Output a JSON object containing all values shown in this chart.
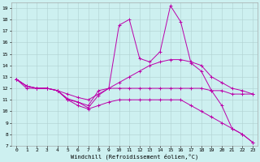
{
  "xlabel": "Windchill (Refroidissement éolien,°C)",
  "background_color": "#cdf0f0",
  "grid_color": "#b0d0d0",
  "line_color": "#bb00aa",
  "xlim": [
    -0.5,
    23.5
  ],
  "ylim": [
    7,
    19.5
  ],
  "xticks": [
    0,
    1,
    2,
    3,
    4,
    5,
    6,
    7,
    8,
    9,
    10,
    11,
    12,
    13,
    14,
    15,
    16,
    17,
    18,
    19,
    20,
    21,
    22,
    23
  ],
  "yticks": [
    7,
    8,
    9,
    10,
    11,
    12,
    13,
    14,
    15,
    16,
    17,
    18,
    19
  ],
  "lines": [
    {
      "x": [
        0,
        1,
        2,
        3,
        4,
        5,
        6,
        7,
        8,
        9,
        10,
        11,
        12,
        13,
        14,
        15,
        16,
        17,
        18,
        19,
        20,
        21,
        22,
        23
      ],
      "y": [
        12.8,
        12.2,
        12.0,
        12.0,
        11.8,
        11.1,
        10.8,
        10.3,
        11.4,
        12.0,
        17.5,
        18.0,
        14.6,
        14.3,
        15.2,
        19.2,
        17.8,
        14.2,
        13.5,
        11.8,
        10.5,
        8.5,
        8.0,
        7.3
      ]
    },
    {
      "x": [
        0,
        1,
        2,
        3,
        4,
        5,
        6,
        7,
        8,
        9,
        10,
        11,
        12,
        13,
        14,
        15,
        16,
        17,
        18,
        19,
        20,
        21,
        22,
        23
      ],
      "y": [
        12.8,
        12.2,
        12.0,
        12.0,
        11.8,
        11.5,
        11.2,
        11.0,
        11.5,
        12.0,
        12.5,
        13.0,
        13.5,
        14.0,
        14.3,
        14.5,
        14.5,
        14.3,
        14.0,
        13.0,
        12.5,
        12.0,
        11.8,
        11.5
      ]
    },
    {
      "x": [
        0,
        1,
        2,
        3,
        4,
        5,
        6,
        7,
        8,
        9,
        10,
        11,
        12,
        13,
        14,
        15,
        16,
        17,
        18,
        19,
        20,
        21,
        22,
        23
      ],
      "y": [
        12.8,
        12.2,
        12.0,
        12.0,
        11.8,
        11.0,
        10.8,
        10.5,
        11.8,
        12.0,
        12.0,
        12.0,
        12.0,
        12.0,
        12.0,
        12.0,
        12.0,
        12.0,
        12.0,
        11.8,
        11.8,
        11.5,
        11.5,
        11.5
      ]
    },
    {
      "x": [
        0,
        1,
        2,
        3,
        4,
        5,
        6,
        7,
        8,
        9,
        10,
        11,
        12,
        13,
        14,
        15,
        16,
        17,
        18,
        19,
        20,
        21,
        22,
        23
      ],
      "y": [
        12.8,
        12.0,
        12.0,
        12.0,
        11.8,
        11.0,
        10.5,
        10.2,
        10.5,
        10.8,
        11.0,
        11.0,
        11.0,
        11.0,
        11.0,
        11.0,
        11.0,
        10.5,
        10.0,
        9.5,
        9.0,
        8.5,
        8.0,
        7.3
      ]
    }
  ]
}
